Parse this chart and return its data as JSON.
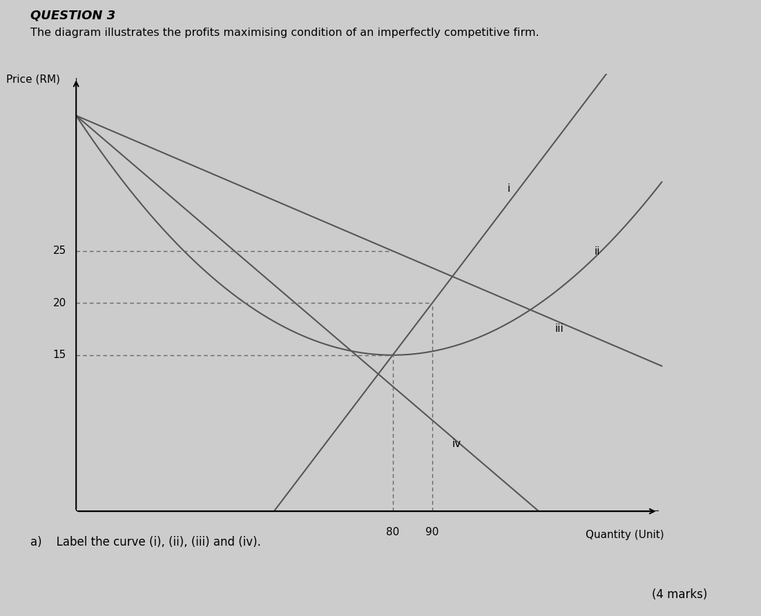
{
  "title_line1": "The diagram illustrates the profits maximising condition of an imperfectly competitive firm.",
  "question_label": "QUESTION 3",
  "part_label": "a)",
  "part_text": "Label the curve (i), (ii), (iii) and (iv).",
  "marks_text": "(4 marks)",
  "ylabel": "Price (RM)",
  "xlabel": "Quantity (Unit)",
  "dashed_color": "#666666",
  "curve_color": "#555555",
  "bg_color": "#cccccc",
  "label_i": "i",
  "label_ii": "ii",
  "label_iii": "iii",
  "label_iv": "iv",
  "xlim": [
    0,
    150
  ],
  "ylim": [
    0,
    42
  ],
  "ar_intercept": 38,
  "ar_slope": -0.1444,
  "mr_intercept": 38,
  "mr_slope": -0.2889,
  "mc_slope": 0.5,
  "mc_intercept": -25,
  "atc_min_q": 80,
  "atc_min_p": 15,
  "atc_coeff": 0.003625,
  "y_ticks": [
    15,
    20,
    25
  ],
  "x_ticks": [
    80,
    90
  ],
  "dash_y15_x": 80,
  "dash_y20_x": 90,
  "dash_y25_x": 80
}
